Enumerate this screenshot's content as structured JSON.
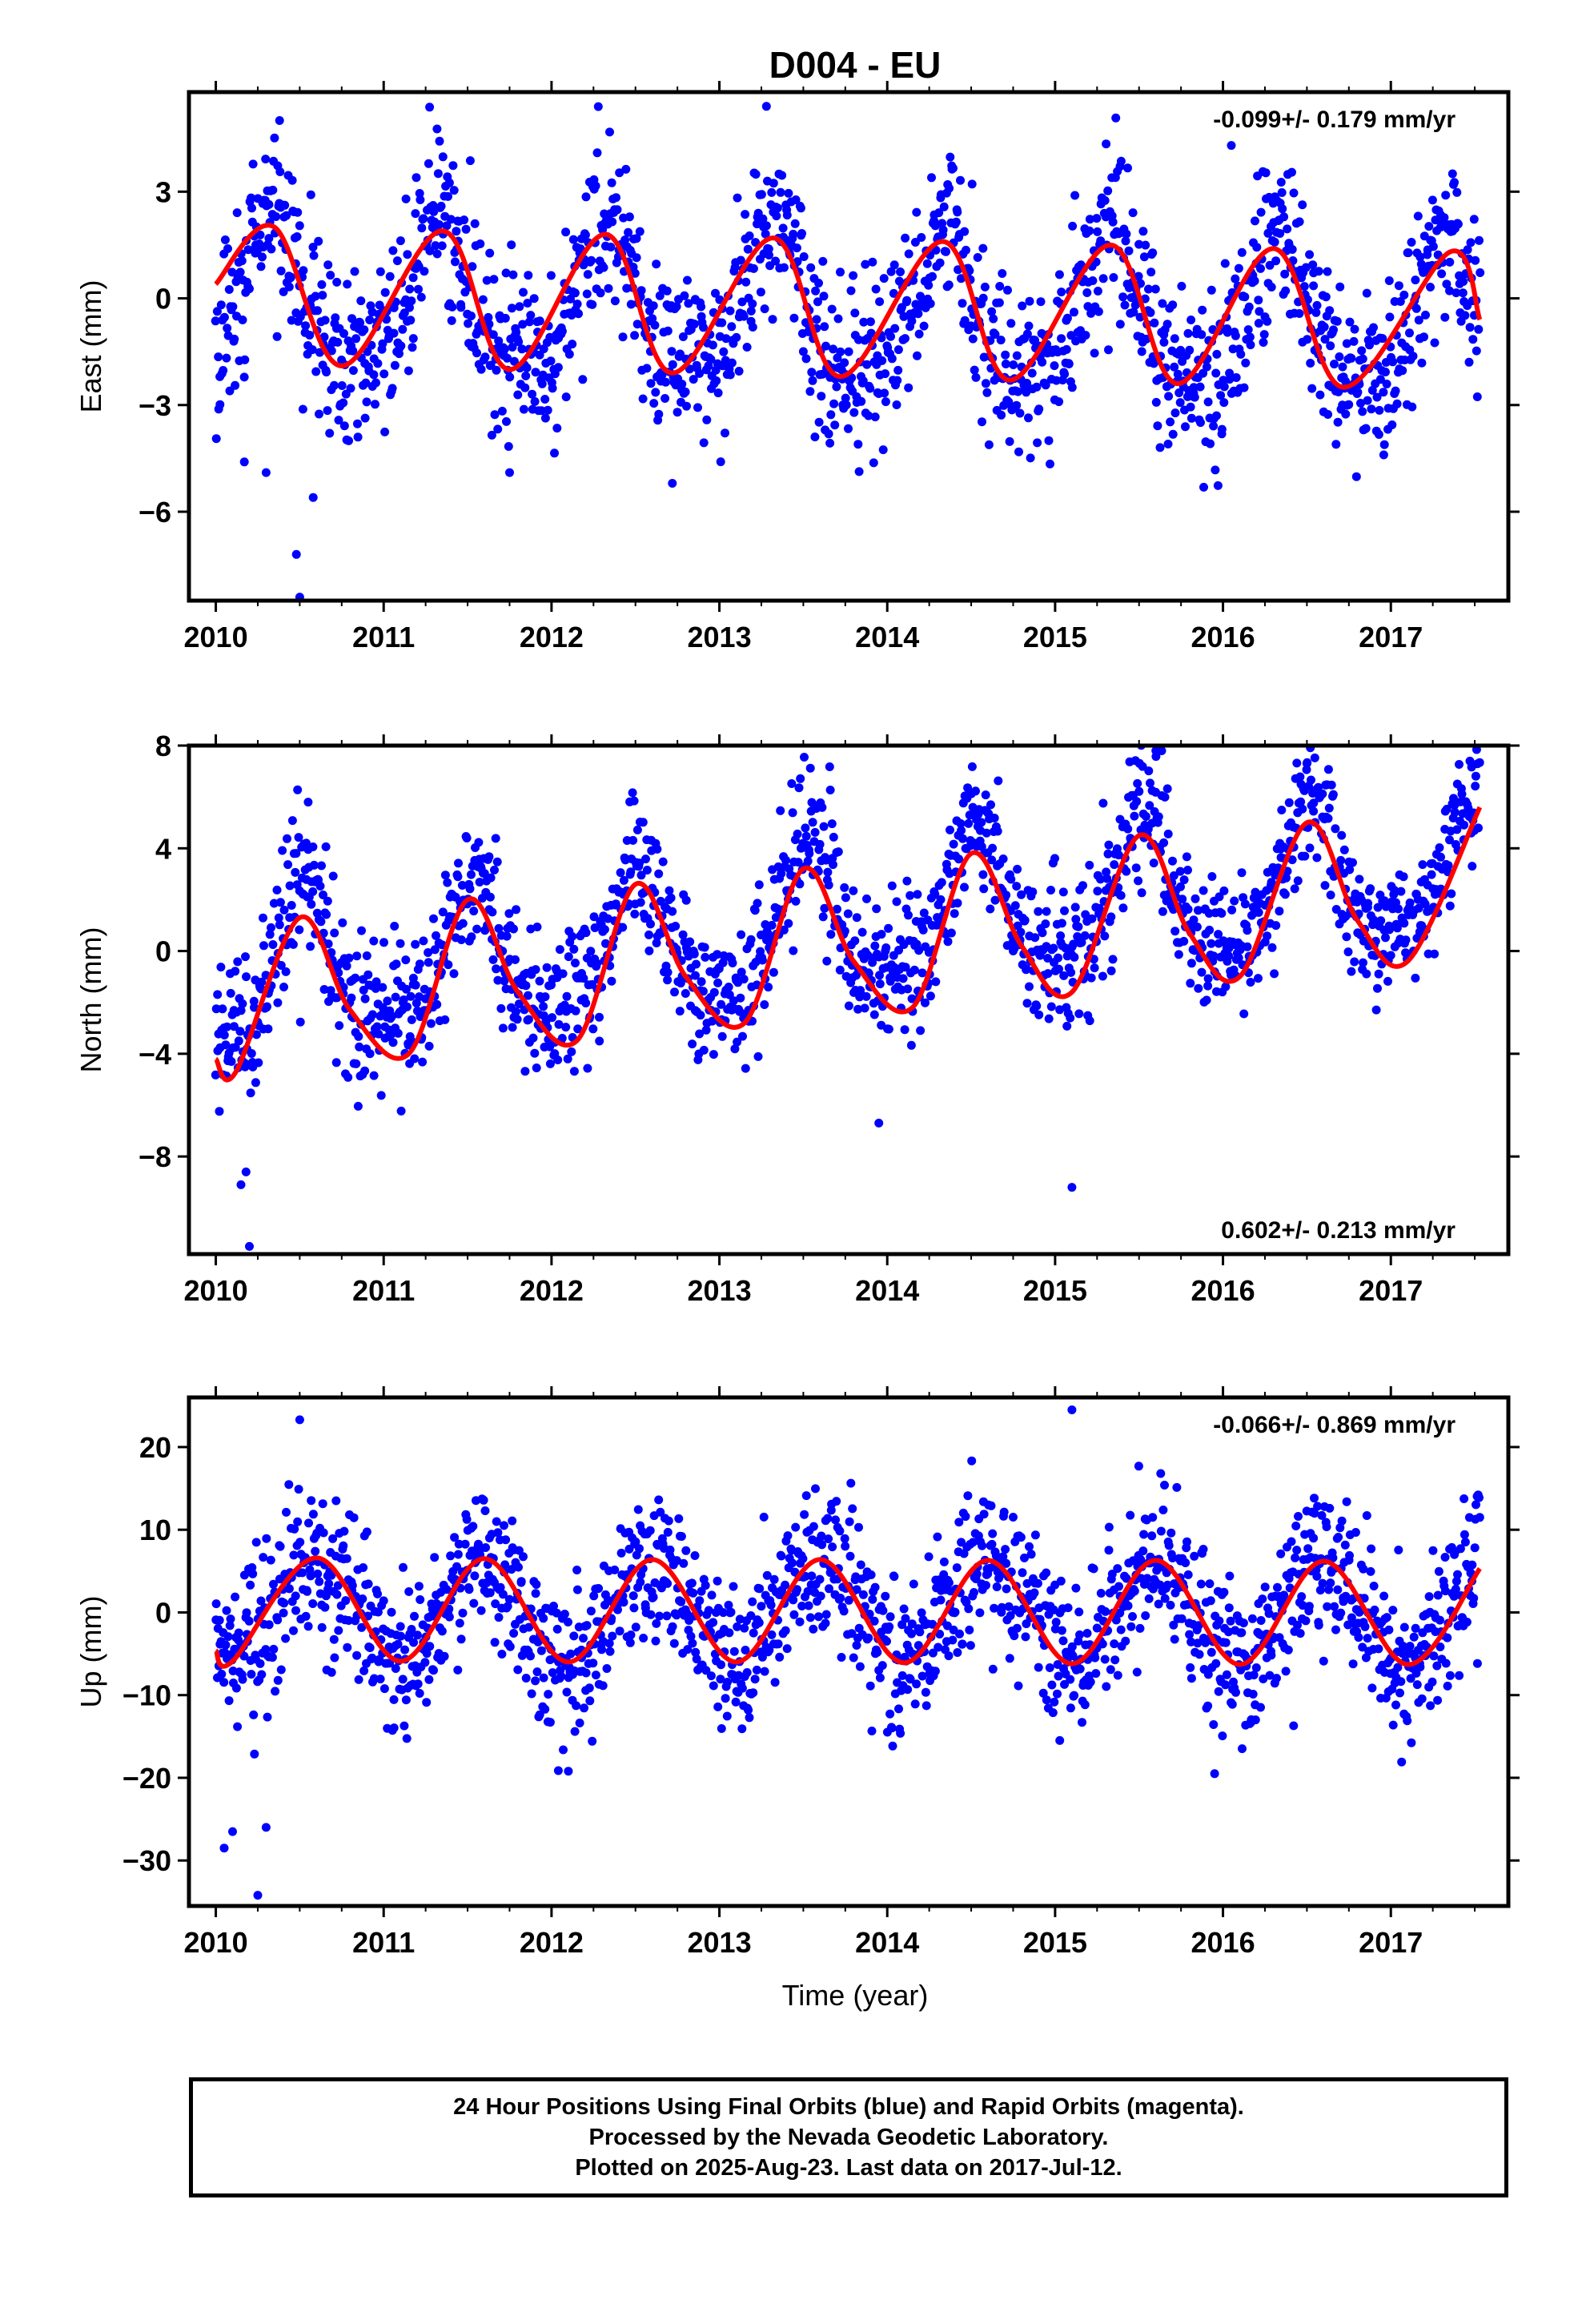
{
  "title": "D004 - EU",
  "xlabel": "Time (year)",
  "colors": {
    "points": "#0000ff",
    "model": "#ff0000",
    "axes": "#000000",
    "rapid_orbits": "#ff00ff"
  },
  "footer": {
    "line1": "24 Hour Positions Using Final Orbits (blue) and Rapid Orbits (magenta).",
    "line2": "Processed by the Nevada Geodetic Laboratory.",
    "line3": "Plotted on 2025-Aug-23. Last data on 2017-Jul-12."
  },
  "chart_data": [
    {
      "type": "scatter",
      "panel": "east",
      "ylabel": "East (mm)",
      "rate_label": "-0.099+/- 0.179 mm/yr",
      "rate_placement": "top-right",
      "xlim": [
        2009.84,
        2017.7
      ],
      "ylim": [
        -8.5,
        5.8
      ],
      "xticks": [
        2010,
        2011,
        2012,
        2013,
        2014,
        2015,
        2016,
        2017
      ],
      "yticks": [
        -6,
        -3,
        0,
        3
      ],
      "ytick_labels": [
        "−6",
        "−3",
        "0",
        "3"
      ],
      "data_span": [
        2010.0,
        2017.53
      ],
      "model": {
        "trend_mm_per_yr": -0.099,
        "annual_amplitude": 2.0,
        "annual_peak": 0.33,
        "semiannual_amplitude": 0.5,
        "offset": 0.0
      },
      "model_points": [
        [
          2010.0,
          0.4
        ],
        [
          2010.35,
          2.0
        ],
        [
          2010.75,
          -1.9
        ],
        [
          2011.35,
          1.9
        ],
        [
          2011.75,
          -2.0
        ],
        [
          2012.32,
          1.8
        ],
        [
          2012.72,
          -2.1
        ],
        [
          2013.32,
          1.7
        ],
        [
          2013.72,
          -2.2
        ],
        [
          2014.33,
          1.6
        ],
        [
          2014.73,
          -2.3
        ],
        [
          2015.33,
          1.5
        ],
        [
          2015.73,
          -2.4
        ],
        [
          2016.3,
          1.4
        ],
        [
          2016.72,
          -2.5
        ],
        [
          2017.35,
          1.3
        ],
        [
          2017.53,
          -0.6
        ]
      ],
      "scatter_sd": 1.2,
      "outliers": [
        [
          2010.5,
          -8.4
        ],
        [
          2010.48,
          -7.2
        ],
        [
          2010.3,
          -4.9
        ],
        [
          2010.17,
          -4.6
        ],
        [
          2010.58,
          -5.6
        ],
        [
          2013.28,
          5.4
        ],
        [
          2010.38,
          5.0
        ],
        [
          2011.75,
          -4.9
        ],
        [
          2012.72,
          -5.2
        ],
        [
          2016.05,
          4.3
        ]
      ]
    },
    {
      "type": "scatter",
      "panel": "north",
      "ylabel": "North (mm)",
      "rate_label": "0.602+/- 0.213 mm/yr",
      "rate_placement": "bottom-right",
      "xlim": [
        2009.84,
        2017.7
      ],
      "ylim": [
        -11.8,
        8.0
      ],
      "xticks": [
        2010,
        2011,
        2012,
        2013,
        2014,
        2015,
        2016,
        2017
      ],
      "yticks": [
        -8,
        -4,
        0,
        4,
        8
      ],
      "ytick_labels": [
        "−8",
        "−4",
        "0",
        "4",
        "8"
      ],
      "data_span": [
        2010.0,
        2017.53
      ],
      "model": {
        "trend_mm_per_yr": 0.602,
        "annual_amplitude": 2.6,
        "annual_peak": 0.52,
        "semiannual_amplitude": 0.8,
        "offset": -1.3
      },
      "model_points": [
        [
          2010.0,
          -4.2
        ],
        [
          2010.12,
          -4.7
        ],
        [
          2010.5,
          1.3
        ],
        [
          2010.8,
          -2.3
        ],
        [
          2011.15,
          -4.0
        ],
        [
          2011.5,
          2.0
        ],
        [
          2011.8,
          -1.6
        ],
        [
          2012.15,
          -3.5
        ],
        [
          2012.5,
          2.6
        ],
        [
          2012.8,
          -1.0
        ],
        [
          2013.15,
          -2.8
        ],
        [
          2013.5,
          3.2
        ],
        [
          2013.8,
          -0.4
        ],
        [
          2014.15,
          -2.2
        ],
        [
          2014.5,
          3.8
        ],
        [
          2014.8,
          0.2
        ],
        [
          2015.1,
          -1.6
        ],
        [
          2015.5,
          4.5
        ],
        [
          2015.8,
          0.7
        ],
        [
          2016.1,
          -1.0
        ],
        [
          2016.5,
          5.0
        ],
        [
          2016.8,
          1.2
        ],
        [
          2017.1,
          -0.4
        ],
        [
          2017.53,
          5.6
        ]
      ],
      "scatter_sd": 1.4,
      "outliers": [
        [
          2010.2,
          -11.5
        ],
        [
          2010.15,
          -9.1
        ],
        [
          2010.18,
          -8.6
        ],
        [
          2015.1,
          -9.2
        ],
        [
          2013.95,
          -6.7
        ],
        [
          2015.6,
          7.8
        ],
        [
          2016.5,
          7.3
        ],
        [
          2010.55,
          5.8
        ]
      ]
    },
    {
      "type": "scatter",
      "panel": "up",
      "ylabel": "Up (mm)",
      "rate_label": "-0.066+/- 0.869 mm/yr",
      "rate_placement": "top-right",
      "xlim": [
        2009.84,
        2017.7
      ],
      "ylim": [
        -35.5,
        26.0
      ],
      "xticks": [
        2010,
        2011,
        2012,
        2013,
        2014,
        2015,
        2016,
        2017
      ],
      "yticks": [
        -30,
        -20,
        -10,
        0,
        10,
        20
      ],
      "ytick_labels": [
        "−30",
        "−20",
        "−10",
        "0",
        "10",
        "20"
      ],
      "data_span": [
        2010.0,
        2017.53
      ],
      "model": {
        "trend_mm_per_yr": -0.066,
        "annual_amplitude": 6.2,
        "annual_peak": 0.6,
        "semiannual_amplitude": 0.0,
        "offset": 0.2
      },
      "model_points": [
        [
          2010.0,
          -4.6
        ],
        [
          2010.1,
          -5.9
        ],
        [
          2010.6,
          6.6
        ],
        [
          2011.1,
          -5.9
        ],
        [
          2011.6,
          6.5
        ],
        [
          2012.1,
          -6.0
        ],
        [
          2012.6,
          6.4
        ],
        [
          2013.1,
          -6.0
        ],
        [
          2013.6,
          6.4
        ],
        [
          2014.1,
          -6.1
        ],
        [
          2014.6,
          6.3
        ],
        [
          2015.1,
          -6.2
        ],
        [
          2015.6,
          6.3
        ],
        [
          2016.1,
          -6.3
        ],
        [
          2016.6,
          6.2
        ],
        [
          2017.1,
          -6.3
        ],
        [
          2017.53,
          5.3
        ]
      ],
      "scatter_sd": 4.5,
      "outliers": [
        [
          2010.05,
          -28.5
        ],
        [
          2010.25,
          -34.2
        ],
        [
          2010.5,
          23.3
        ],
        [
          2015.1,
          24.5
        ],
        [
          2010.1,
          -26.5
        ],
        [
          2010.3,
          -26.0
        ],
        [
          2012.1,
          -19.2
        ],
        [
          2015.95,
          -19.5
        ]
      ]
    }
  ]
}
